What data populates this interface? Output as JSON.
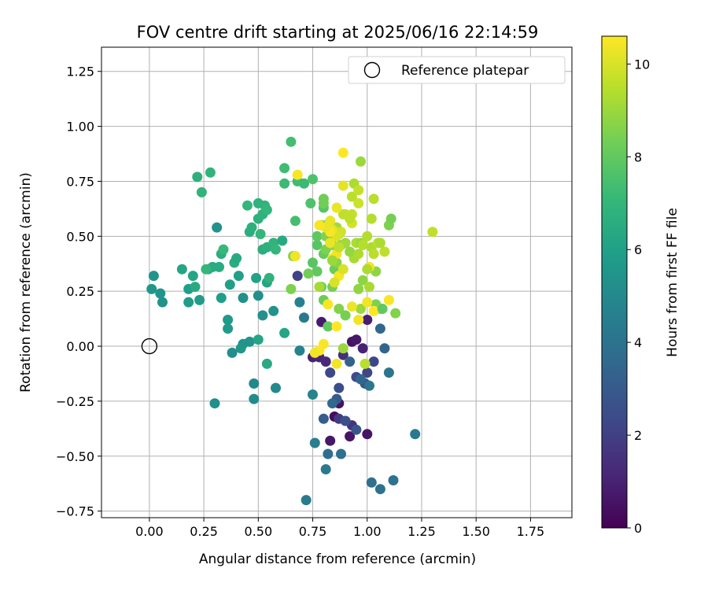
{
  "chart_data": {
    "type": "scatter",
    "title": "FOV centre drift starting at 2025/06/16 22:14:59",
    "xlabel": "Angular distance from reference (arcmin)",
    "ylabel": "Rotation from reference (arcmin)",
    "xlim": [
      -0.22,
      1.94
    ],
    "ylim": [
      -0.78,
      1.36
    ],
    "xticks": [
      "0.00",
      "0.25",
      "0.50",
      "0.75",
      "1.00",
      "1.25",
      "1.50",
      "1.75"
    ],
    "xtick_values": [
      0,
      0.25,
      0.5,
      0.75,
      1.0,
      1.25,
      1.5,
      1.75
    ],
    "yticks": [
      "−0.75",
      "−0.50",
      "−0.25",
      "0.00",
      "0.25",
      "0.50",
      "0.75",
      "1.00",
      "1.25"
    ],
    "ytick_values": [
      -0.75,
      -0.5,
      -0.25,
      0,
      0.25,
      0.5,
      0.75,
      1.0,
      1.25
    ],
    "grid": true,
    "legend": {
      "position": "upper-right",
      "entries": [
        "Reference platepar"
      ]
    },
    "reference_point": {
      "x": 0.0,
      "y": 0.0,
      "label": "Reference platepar"
    },
    "colorbar": {
      "label": "Hours from first FF file",
      "range": [
        0,
        10.6
      ],
      "ticks": [
        "0",
        "2",
        "4",
        "6",
        "8",
        "10"
      ],
      "tick_values": [
        0,
        2,
        4,
        6,
        8,
        10
      ],
      "colormap": "viridis"
    },
    "points": [
      [
        0.85,
        -0.32,
        0.4
      ],
      [
        0.87,
        -0.26,
        0.5
      ],
      [
        0.83,
        -0.43,
        0.7
      ],
      [
        0.92,
        -0.41,
        0.6
      ],
      [
        0.93,
        0.02,
        0.5
      ],
      [
        0.95,
        0.03,
        0.7
      ],
      [
        0.79,
        0.11,
        0.8
      ],
      [
        1.0,
        -0.4,
        0.6
      ],
      [
        0.75,
        -0.05,
        1.0
      ],
      [
        0.98,
        -0.01,
        1.0
      ],
      [
        1.0,
        0.12,
        0.9
      ],
      [
        0.78,
        -0.05,
        1.1
      ],
      [
        0.81,
        -0.07,
        1.2
      ],
      [
        0.89,
        -0.04,
        1.4
      ],
      [
        0.93,
        -0.36,
        1.6
      ],
      [
        0.87,
        -0.33,
        1.8
      ],
      [
        0.68,
        0.32,
        2.1
      ],
      [
        1.0,
        -0.12,
        2.2
      ],
      [
        1.03,
        -0.07,
        2.3
      ],
      [
        0.95,
        -0.14,
        2.4
      ],
      [
        0.87,
        -0.19,
        2.5
      ],
      [
        0.83,
        -0.12,
        2.3
      ],
      [
        0.9,
        -0.34,
        2.6
      ],
      [
        0.95,
        -0.38,
        2.8
      ],
      [
        0.99,
        -0.17,
        2.7
      ],
      [
        0.86,
        -0.24,
        3.0
      ],
      [
        0.8,
        -0.33,
        3.1
      ],
      [
        0.92,
        -0.07,
        3.3
      ],
      [
        1.08,
        -0.01,
        3.4
      ],
      [
        1.06,
        0.08,
        3.5
      ],
      [
        0.97,
        -0.15,
        3.5
      ],
      [
        0.84,
        -0.26,
        3.6
      ],
      [
        0.82,
        -0.49,
        3.8
      ],
      [
        0.88,
        -0.49,
        3.9
      ],
      [
        1.02,
        -0.62,
        3.9
      ],
      [
        1.06,
        -0.65,
        4.0
      ],
      [
        1.12,
        -0.61,
        4.0
      ],
      [
        1.1,
        -0.12,
        4.1
      ],
      [
        1.01,
        -0.18,
        4.2
      ],
      [
        1.22,
        -0.4,
        4.3
      ],
      [
        0.81,
        -0.56,
        4.3
      ],
      [
        0.72,
        -0.7,
        4.4
      ],
      [
        0.76,
        -0.44,
        4.5
      ],
      [
        0.71,
        0.13,
        4.3
      ],
      [
        0.69,
        0.2,
        4.6
      ],
      [
        0.69,
        -0.02,
        4.7
      ],
      [
        0.75,
        -0.22,
        4.8
      ],
      [
        0.48,
        -0.17,
        5.0
      ],
      [
        0.58,
        -0.19,
        5.0
      ],
      [
        0.48,
        -0.24,
        5.1
      ],
      [
        0.3,
        -0.26,
        5.2
      ],
      [
        0.38,
        -0.03,
        5.2
      ],
      [
        0.5,
        0.23,
        5.3
      ],
      [
        0.43,
        0.22,
        5.3
      ],
      [
        0.52,
        0.14,
        5.4
      ],
      [
        0.57,
        0.16,
        5.4
      ],
      [
        0.46,
        0.02,
        5.5
      ],
      [
        0.43,
        0.01,
        5.5
      ],
      [
        0.42,
        -0.01,
        5.6
      ],
      [
        0.36,
        0.12,
        5.7
      ],
      [
        0.36,
        0.08,
        5.7
      ],
      [
        0.06,
        0.2,
        5.4
      ],
      [
        0.05,
        0.24,
        5.5
      ],
      [
        0.02,
        0.32,
        5.5
      ],
      [
        0.01,
        0.26,
        5.6
      ],
      [
        0.18,
        0.2,
        5.8
      ],
      [
        0.23,
        0.21,
        5.8
      ],
      [
        0.18,
        0.26,
        5.9
      ],
      [
        0.33,
        0.22,
        5.9
      ],
      [
        0.37,
        0.28,
        6.0
      ],
      [
        0.41,
        0.32,
        6.0
      ],
      [
        0.49,
        0.31,
        6.1
      ],
      [
        0.54,
        0.29,
        6.2
      ],
      [
        0.5,
        0.03,
        6.2
      ],
      [
        0.62,
        0.06,
        6.2
      ],
      [
        0.54,
        -0.08,
        6.4
      ],
      [
        0.2,
        0.32,
        6.2
      ],
      [
        0.15,
        0.35,
        6.2
      ],
      [
        0.21,
        0.27,
        6.4
      ],
      [
        0.27,
        0.35,
        6.4
      ],
      [
        0.29,
        0.36,
        6.5
      ],
      [
        0.32,
        0.36,
        6.5
      ],
      [
        0.33,
        0.42,
        6.6
      ],
      [
        0.39,
        0.38,
        6.6
      ],
      [
        0.4,
        0.4,
        6.4
      ],
      [
        0.31,
        0.54,
        5.4
      ],
      [
        0.46,
        0.52,
        6.6
      ],
      [
        0.47,
        0.54,
        6.7
      ],
      [
        0.52,
        0.44,
        6.6
      ],
      [
        0.54,
        0.45,
        6.7
      ],
      [
        0.55,
        0.31,
        6.8
      ],
      [
        0.57,
        0.47,
        6.9
      ],
      [
        0.58,
        0.44,
        7.0
      ],
      [
        0.61,
        0.48,
        6.4
      ],
      [
        0.5,
        0.58,
        6.8
      ],
      [
        0.52,
        0.6,
        6.8
      ],
      [
        0.53,
        0.64,
        6.9
      ],
      [
        0.54,
        0.62,
        7.0
      ],
      [
        0.51,
        0.51,
        7.0
      ],
      [
        0.45,
        0.64,
        7.0
      ],
      [
        0.5,
        0.65,
        6.8
      ],
      [
        0.22,
        0.77,
        6.7
      ],
      [
        0.24,
        0.7,
        6.9
      ],
      [
        0.28,
        0.79,
        6.9
      ],
      [
        0.26,
        0.35,
        7.0
      ],
      [
        0.34,
        0.44,
        7.1
      ],
      [
        0.62,
        0.74,
        7.2
      ],
      [
        0.68,
        0.75,
        7.3
      ],
      [
        0.71,
        0.74,
        7.2
      ],
      [
        0.62,
        0.81,
        7.3
      ],
      [
        0.65,
        0.93,
        7.4
      ],
      [
        0.67,
        0.57,
        7.4
      ],
      [
        0.75,
        0.76,
        7.6
      ],
      [
        0.74,
        0.65,
        7.6
      ],
      [
        0.8,
        0.63,
        7.8
      ],
      [
        0.77,
        0.46,
        7.8
      ],
      [
        0.77,
        0.5,
        7.9
      ],
      [
        0.81,
        0.55,
        8.0
      ],
      [
        0.8,
        0.67,
        8.3
      ],
      [
        0.8,
        0.65,
        8.3
      ],
      [
        0.83,
        0.51,
        8.1
      ],
      [
        0.8,
        0.42,
        8.1
      ],
      [
        0.77,
        0.34,
        8.0
      ],
      [
        0.75,
        0.38,
        7.8
      ],
      [
        0.79,
        0.27,
        8.2
      ],
      [
        0.8,
        0.21,
        8.2
      ],
      [
        0.84,
        0.27,
        8.4
      ],
      [
        0.82,
        0.09,
        8.0
      ],
      [
        0.85,
        0.35,
        8.2
      ],
      [
        0.73,
        0.33,
        8.3
      ],
      [
        0.65,
        0.26,
        8.5
      ],
      [
        0.66,
        0.41,
        8.6
      ],
      [
        0.81,
        0.44,
        8.5
      ],
      [
        0.79,
        0.55,
        8.9
      ],
      [
        0.81,
        0.5,
        8.6
      ],
      [
        0.86,
        0.38,
        8.7
      ],
      [
        0.84,
        0.46,
        8.8
      ],
      [
        0.88,
        0.46,
        8.7
      ],
      [
        0.87,
        0.51,
        8.9
      ],
      [
        0.83,
        0.57,
        9.0
      ],
      [
        0.86,
        0.54,
        9.1
      ],
      [
        0.9,
        0.47,
        9.1
      ],
      [
        0.94,
        0.4,
        9.2
      ],
      [
        0.92,
        0.43,
        8.9
      ],
      [
        0.95,
        0.47,
        9.3
      ],
      [
        0.97,
        0.47,
        9.0
      ],
      [
        0.96,
        0.42,
        9.3
      ],
      [
        0.98,
        0.46,
        9.4
      ],
      [
        1.0,
        0.5,
        9.4
      ],
      [
        1.02,
        0.45,
        9.3
      ],
      [
        1.03,
        0.42,
        9.5
      ],
      [
        1.05,
        0.47,
        9.5
      ],
      [
        1.08,
        0.43,
        9.6
      ],
      [
        1.02,
        0.58,
        9.4
      ],
      [
        1.06,
        0.47,
        9.3
      ],
      [
        1.1,
        0.55,
        8.5
      ],
      [
        1.11,
        0.58,
        8.4
      ],
      [
        1.13,
        0.15,
        8.6
      ],
      [
        1.04,
        0.34,
        8.8
      ],
      [
        1.04,
        0.19,
        8.5
      ],
      [
        1.06,
        0.17,
        8.7
      ],
      [
        0.98,
        0.3,
        8.8
      ],
      [
        0.97,
        0.17,
        9.0
      ],
      [
        1.01,
        0.27,
        9.2
      ],
      [
        1.03,
        0.67,
        9.5
      ],
      [
        0.97,
        0.84,
        9.0
      ],
      [
        0.94,
        0.74,
        9.3
      ],
      [
        0.93,
        0.68,
        9.5
      ],
      [
        0.96,
        0.71,
        9.7
      ],
      [
        0.96,
        0.65,
        9.8
      ],
      [
        0.9,
        0.6,
        9.7
      ],
      [
        0.93,
        0.6,
        9.7
      ],
      [
        0.89,
        0.6,
        9.6
      ],
      [
        0.93,
        0.56,
        9.9
      ],
      [
        0.92,
        0.58,
        9.6
      ],
      [
        0.88,
        0.52,
        9.9
      ],
      [
        0.86,
        0.5,
        10.0
      ],
      [
        0.84,
        0.53,
        10.2
      ],
      [
        0.83,
        0.52,
        10.5
      ],
      [
        0.81,
        0.54,
        10.3
      ],
      [
        0.78,
        0.55,
        10.5
      ],
      [
        0.83,
        0.47,
        10.3
      ],
      [
        0.84,
        0.4,
        10.5
      ],
      [
        0.86,
        0.42,
        10.4
      ],
      [
        0.86,
        0.63,
        10.3
      ],
      [
        0.89,
        0.73,
        10.2
      ],
      [
        0.89,
        0.88,
        10.6
      ],
      [
        0.68,
        0.78,
        10.5
      ],
      [
        0.67,
        0.41,
        10.4
      ],
      [
        0.83,
        0.57,
        10.3
      ],
      [
        0.87,
        0.32,
        10.5
      ],
      [
        0.85,
        0.29,
        10.0
      ],
      [
        0.89,
        0.35,
        10.0
      ],
      [
        0.93,
        0.18,
        10.3
      ],
      [
        0.96,
        0.12,
        10.4
      ],
      [
        1.0,
        0.2,
        10.4
      ],
      [
        1.01,
        0.36,
        10.4
      ],
      [
        1.03,
        0.16,
        10.6
      ],
      [
        1.1,
        0.21,
        10.5
      ],
      [
        0.86,
        0.09,
        10.6
      ],
      [
        0.82,
        0.19,
        10.5
      ],
      [
        0.8,
        0.01,
        10.5
      ],
      [
        0.78,
        -0.02,
        10.6
      ],
      [
        0.76,
        -0.03,
        10.4
      ],
      [
        0.86,
        -0.08,
        10.4
      ],
      [
        0.99,
        -0.08,
        9.5
      ],
      [
        0.89,
        -0.01,
        9.0
      ],
      [
        0.87,
        0.17,
        8.6
      ],
      [
        0.9,
        0.14,
        8.4
      ],
      [
        1.07,
        0.17,
        8.0
      ],
      [
        1.3,
        0.52,
        9.6
      ],
      [
        0.96,
        0.26,
        8.8
      ],
      [
        0.84,
        0.39,
        9.0
      ],
      [
        0.78,
        0.27,
        9.2
      ],
      [
        1.0,
        0.35,
        9.3
      ],
      [
        0.87,
        0.45,
        9.6
      ]
    ]
  }
}
